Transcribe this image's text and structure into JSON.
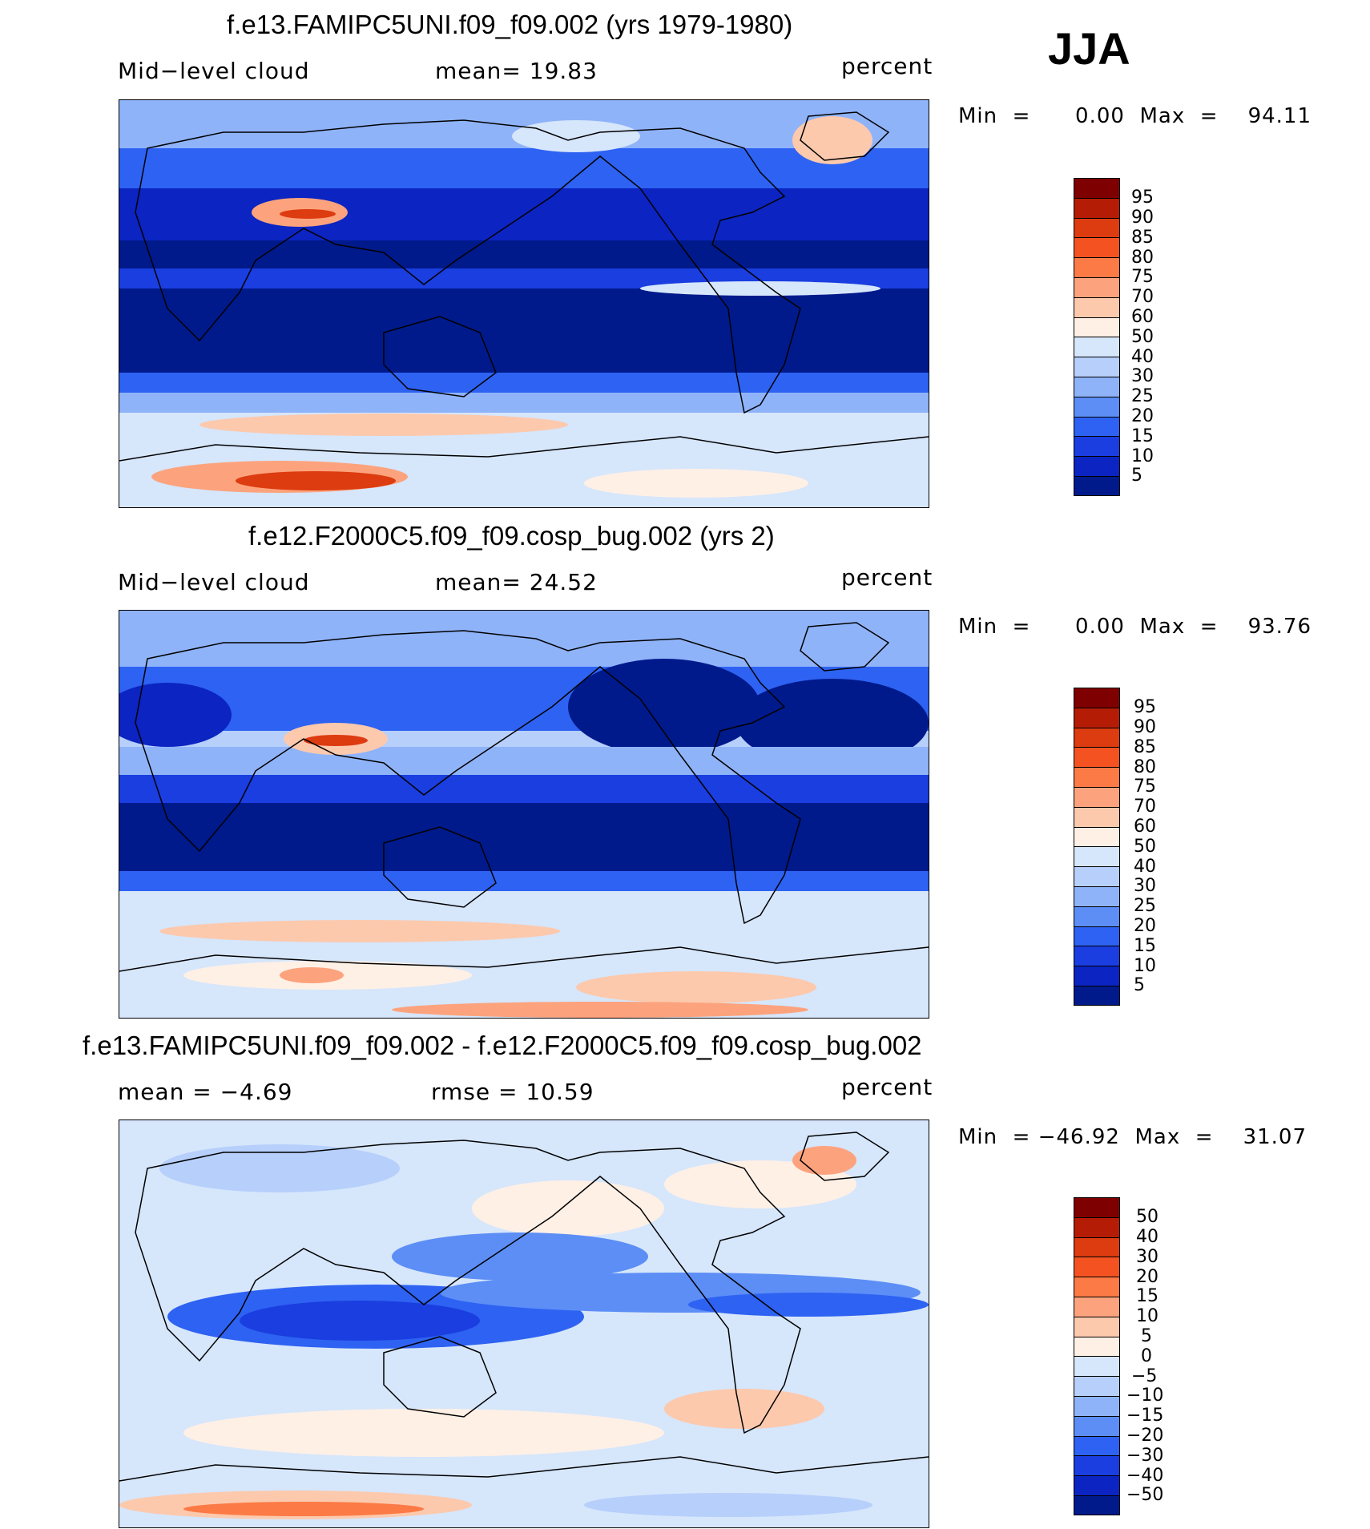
{
  "season": "JJA",
  "levels_abs": [
    "95",
    "90",
    "85",
    "80",
    "75",
    "70",
    "60",
    "50",
    "40",
    "30",
    "25",
    "20",
    "15",
    "10",
    "5"
  ],
  "levels_diff": [
    "50",
    "40",
    "30",
    "20",
    "15",
    "10",
    "5",
    "0",
    "−5",
    "−10",
    "−15",
    "−20",
    "−30",
    "−40",
    "−50"
  ],
  "palette": [
    "#7f0000",
    "#b51c06",
    "#dd3b10",
    "#f45321",
    "#fc7a45",
    "#fca37d",
    "#fcc9ad",
    "#fff0e6",
    "#d6e6fb",
    "#b6cffb",
    "#8fb3f9",
    "#5c8ef6",
    "#2e62f2",
    "#1a3ee0",
    "#0b24c2",
    "#001a8c"
  ],
  "panels": [
    {
      "title": "f.e13.FAMIPC5UNI.f09_f09.002 (yrs 1979-1980)",
      "left_label": "Mid−level  cloud",
      "center_label": "mean=   19.83",
      "units": "percent",
      "minmax": "Min  =      0.00  Max  =    94.11"
    },
    {
      "title": "f.e12.F2000C5.f09_f09.cosp_bug.002 (yrs 2)",
      "left_label": "Mid−level  cloud",
      "center_label": "mean=   24.52",
      "units": "percent",
      "minmax": "Min  =      0.00  Max  =    93.76"
    },
    {
      "title": "f.e13.FAMIPC5UNI.f09_f09.002 - f.e12.F2000C5.f09_f09.cosp_bug.002",
      "left_label": "mean  =    −4.69",
      "center_label": "rmse  =    10.59",
      "units": "percent",
      "minmax": "Min  = −46.92  Max  =    31.07"
    }
  ],
  "chart_data": [
    {
      "type": "heatmap",
      "title": "f.e13.FAMIPC5UNI.f09_f09.002 (yrs 1979-1980)",
      "variable": "Mid-level cloud",
      "units": "percent",
      "season": "JJA",
      "mean": 19.83,
      "min": 0.0,
      "max": 94.11,
      "contour_levels": [
        5,
        10,
        15,
        20,
        25,
        30,
        40,
        50,
        60,
        70,
        75,
        80,
        85,
        90,
        95
      ]
    },
    {
      "type": "heatmap",
      "title": "f.e12.F2000C5.f09_f09.cosp_bug.002 (yrs 2)",
      "variable": "Mid-level cloud",
      "units": "percent",
      "season": "JJA",
      "mean": 24.52,
      "min": 0.0,
      "max": 93.76,
      "contour_levels": [
        5,
        10,
        15,
        20,
        25,
        30,
        40,
        50,
        60,
        70,
        75,
        80,
        85,
        90,
        95
      ]
    },
    {
      "type": "heatmap",
      "title": "f.e13.FAMIPC5UNI.f09_f09.002 - f.e12.F2000C5.f09_f09.cosp_bug.002",
      "units": "percent",
      "season": "JJA",
      "mean": -4.69,
      "rmse": 10.59,
      "min": -46.92,
      "max": 31.07,
      "contour_levels": [
        -50,
        -40,
        -30,
        -20,
        -15,
        -10,
        -5,
        0,
        5,
        10,
        15,
        20,
        30,
        40,
        50
      ]
    }
  ]
}
